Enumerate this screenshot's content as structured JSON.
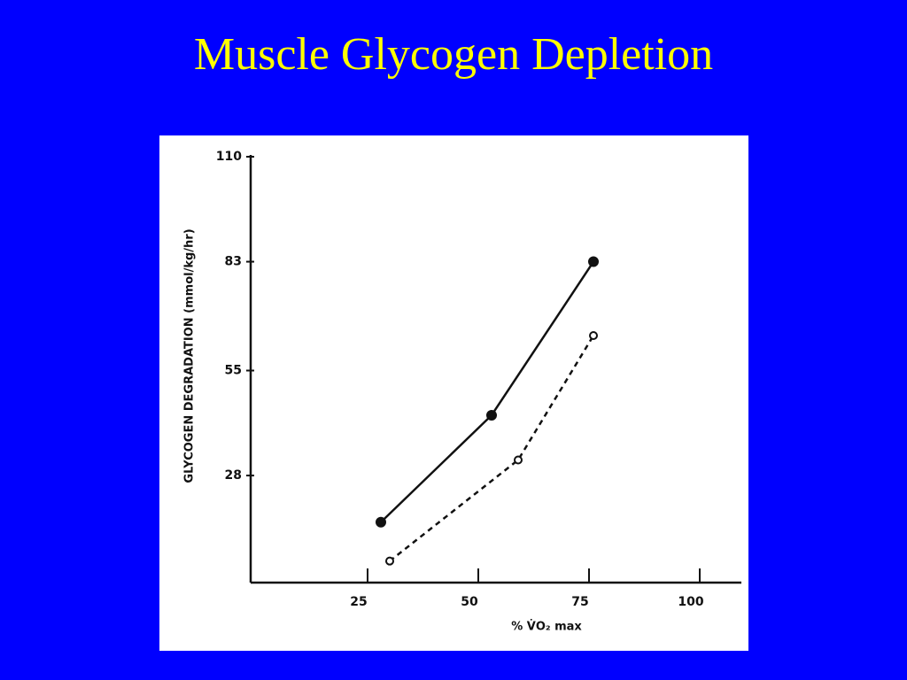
{
  "chart_data": {
    "type": "line",
    "title": "Muscle Glycogen Depletion",
    "x_label": "% V̇O₂ max",
    "y_label": "GLYCOGEN DEGRADATION (mmol/kg/hr)",
    "xlim": [
      0,
      110
    ],
    "xticks": [
      25,
      50,
      75,
      100
    ],
    "ylim": [
      0,
      110
    ],
    "yticks": [
      28,
      55,
      83,
      110
    ],
    "series": [
      {
        "color": "#111111",
        "dashed": false,
        "marker": "filled",
        "x": [
          28,
          53,
          76
        ],
        "values": [
          16,
          43.5,
          83
        ]
      },
      {
        "color": "#111111",
        "dashed": true,
        "marker": "open",
        "x": [
          30,
          59,
          76
        ],
        "values": [
          6,
          32,
          64
        ]
      }
    ]
  }
}
